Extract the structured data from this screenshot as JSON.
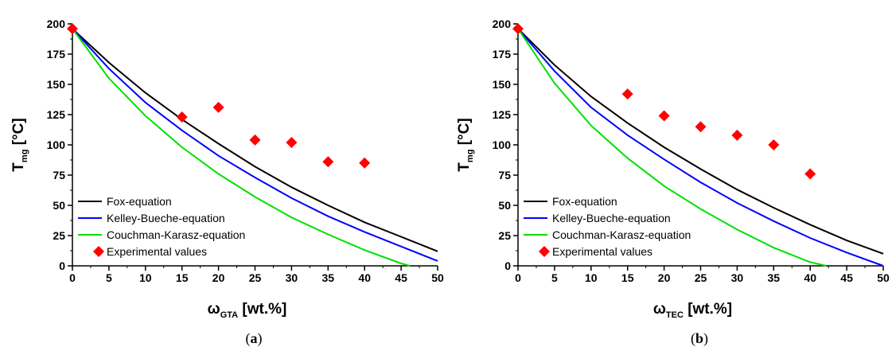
{
  "chart_data": [
    {
      "type": "line",
      "panel_label": "(a)",
      "panel_letter": "a",
      "xlabel": {
        "main": "ω",
        "sub": "GTA",
        "unit": " [wt.%]"
      },
      "ylabel": {
        "main": "T",
        "sub": "mg",
        "unit": " [°C]"
      },
      "xlim": [
        0,
        50
      ],
      "ylim": [
        0,
        200
      ],
      "xticks": [
        0,
        5,
        10,
        15,
        20,
        25,
        30,
        35,
        40,
        45,
        50
      ],
      "yticks": [
        0,
        25,
        50,
        75,
        100,
        125,
        150,
        175,
        200
      ],
      "legend_position": "bottom-left",
      "series": [
        {
          "name": "Fox-equation",
          "kind": "line",
          "color": "#000000",
          "x": [
            0,
            5,
            10,
            15,
            20,
            25,
            30,
            35,
            40,
            45,
            50
          ],
          "y": [
            196,
            168,
            143,
            121,
            101,
            82,
            65,
            50,
            36,
            24,
            12
          ]
        },
        {
          "name": "Kelley-Bueche-equation",
          "kind": "line",
          "color": "#0000ff",
          "x": [
            0,
            5,
            10,
            15,
            20,
            25,
            30,
            35,
            40,
            45,
            50
          ],
          "y": [
            196,
            163,
            135,
            112,
            91,
            73,
            56,
            41,
            28,
            16,
            4
          ]
        },
        {
          "name": "Couchman-Karasz-equation",
          "kind": "line",
          "color": "#00e000",
          "x": [
            0,
            5,
            10,
            15,
            20,
            25,
            30,
            35,
            40,
            45,
            46.2
          ],
          "y": [
            196,
            155,
            124,
            98,
            76,
            57,
            40,
            26,
            13,
            2,
            0
          ]
        },
        {
          "name": "Experimental values",
          "kind": "marker",
          "color": "#ff0000",
          "x": [
            0,
            15,
            20,
            25,
            30,
            35,
            40
          ],
          "y": [
            196,
            123,
            131,
            104,
            102,
            86,
            85
          ]
        }
      ]
    },
    {
      "type": "line",
      "panel_label": "(b)",
      "panel_letter": "b",
      "xlabel": {
        "main": "ω",
        "sub": "TEC",
        "unit": " [wt.%]"
      },
      "ylabel": {
        "main": "T",
        "sub": "mg",
        "unit": " [°C]"
      },
      "xlim": [
        0,
        50
      ],
      "ylim": [
        0,
        200
      ],
      "xticks": [
        0,
        5,
        10,
        15,
        20,
        25,
        30,
        35,
        40,
        45,
        50
      ],
      "yticks": [
        0,
        25,
        50,
        75,
        100,
        125,
        150,
        175,
        200
      ],
      "legend_position": "bottom-left",
      "series": [
        {
          "name": "Fox-equation",
          "kind": "line",
          "color": "#000000",
          "x": [
            0,
            5,
            10,
            15,
            20,
            25,
            30,
            35,
            40,
            45,
            50
          ],
          "y": [
            196,
            166,
            140,
            118,
            98,
            80,
            63,
            48,
            34,
            21,
            10
          ]
        },
        {
          "name": "Kelley-Bueche-equation",
          "kind": "line",
          "color": "#0000ff",
          "x": [
            0,
            5,
            10,
            15,
            20,
            25,
            30,
            35,
            40,
            45,
            50
          ],
          "y": [
            196,
            161,
            131,
            108,
            88,
            69,
            52,
            37,
            23,
            11,
            0
          ]
        },
        {
          "name": "Couchman-Karasz-equation",
          "kind": "line",
          "color": "#00e000",
          "x": [
            0,
            5,
            10,
            15,
            20,
            25,
            30,
            35,
            40,
            42.2
          ],
          "y": [
            196,
            151,
            116,
            89,
            66,
            47,
            30,
            15,
            3,
            0
          ]
        },
        {
          "name": "Experimental values",
          "kind": "marker",
          "color": "#ff0000",
          "x": [
            0,
            15,
            20,
            25,
            30,
            35,
            40
          ],
          "y": [
            196,
            142,
            124,
            115,
            108,
            100,
            76
          ]
        }
      ]
    }
  ]
}
